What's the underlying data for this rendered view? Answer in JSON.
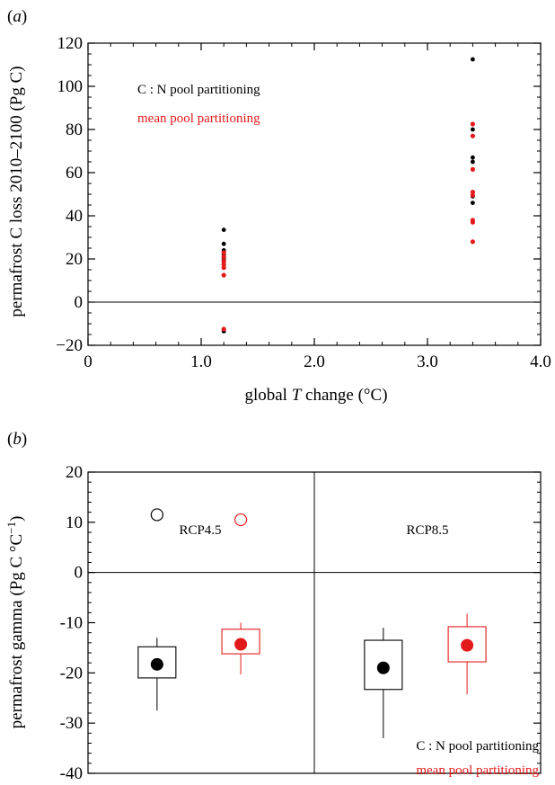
{
  "chart_data": [
    {
      "panel": "(a)",
      "panel_letter": "a",
      "type": "scatter",
      "xlabel_pre": "global ",
      "xlabel_var": "T",
      "xlabel_post": " change (°C)",
      "ylabel": "permafrost C loss 2010–2100 (Pg C)",
      "xlim": [
        0,
        4.0
      ],
      "ylim": [
        -20,
        120
      ],
      "xticks": [
        "0",
        "1.0",
        "2.0",
        "3.0",
        "4.0"
      ],
      "yticks": [
        "−20",
        "0",
        "20",
        "40",
        "60",
        "80",
        "100",
        "120"
      ],
      "zero_line": true,
      "legend": [
        {
          "label": "C : N pool partitioning",
          "color": "#000000"
        },
        {
          "label": "mean pool partitioning",
          "color": "#e31a1c"
        }
      ],
      "series": [
        {
          "name": "C : N pool partitioning",
          "color": "#000000",
          "points": [
            [
              1.2,
              33.5
            ],
            [
              1.2,
              27
            ],
            [
              1.2,
              24
            ],
            [
              1.2,
              22
            ],
            [
              1.2,
              20
            ],
            [
              1.2,
              -13.5
            ],
            [
              3.4,
              112.5
            ],
            [
              3.4,
              80
            ],
            [
              3.4,
              67
            ],
            [
              3.4,
              65
            ],
            [
              3.4,
              49
            ],
            [
              3.4,
              46
            ]
          ]
        },
        {
          "name": "mean pool partitioning",
          "color": "#e31a1c",
          "points": [
            [
              1.2,
              23
            ],
            [
              1.2,
              21
            ],
            [
              1.2,
              19
            ],
            [
              1.2,
              17.5
            ],
            [
              1.2,
              16
            ],
            [
              1.2,
              12.5
            ],
            [
              1.2,
              -12.5
            ],
            [
              3.4,
              82.5
            ],
            [
              3.4,
              77
            ],
            [
              3.4,
              61.5
            ],
            [
              3.4,
              51
            ],
            [
              3.4,
              49.5
            ],
            [
              3.4,
              38
            ],
            [
              3.4,
              37
            ],
            [
              3.4,
              28
            ]
          ]
        }
      ]
    },
    {
      "panel": "(b)",
      "panel_letter": "b",
      "type": "box",
      "ylabel": "permafrost gamma (Pg C °C",
      "ylabel_sup": "−1",
      "ylabel_close": ")",
      "ylim": [
        -40,
        20
      ],
      "yticks": [
        "20",
        "10",
        "0",
        "-10",
        "-20",
        "-30",
        "-40"
      ],
      "groups": [
        "RCP4.5",
        "RCP8.5"
      ],
      "legend": [
        {
          "label": "C : N pool partitioning",
          "color": "#000000"
        },
        {
          "label": "mean pool partitioning",
          "color": "#e31a1c"
        }
      ],
      "boxes": [
        {
          "group": "RCP4.5",
          "series": "C : N pool partitioning",
          "color": "#000000",
          "whisker_low": -27.5,
          "q1": -21,
          "q3": -14.8,
          "whisker_high": -13,
          "mean": -18.3,
          "outlier": 11.5
        },
        {
          "group": "RCP4.5",
          "series": "mean pool partitioning",
          "color": "#e31a1c",
          "whisker_low": -20.3,
          "q1": -16.2,
          "q3": -11.3,
          "whisker_high": -10,
          "mean": -14.3,
          "outlier": 10.5
        },
        {
          "group": "RCP8.5",
          "series": "C : N pool partitioning",
          "color": "#000000",
          "whisker_low": -33,
          "q1": -23.3,
          "q3": -13.5,
          "whisker_high": -11,
          "mean": -19,
          "outlier": null
        },
        {
          "group": "RCP8.5",
          "series": "mean pool partitioning",
          "color": "#e31a1c",
          "whisker_low": -24.3,
          "q1": -17.8,
          "q3": -10.8,
          "whisker_high": -8.2,
          "mean": -14.5,
          "outlier": null
        }
      ]
    }
  ]
}
